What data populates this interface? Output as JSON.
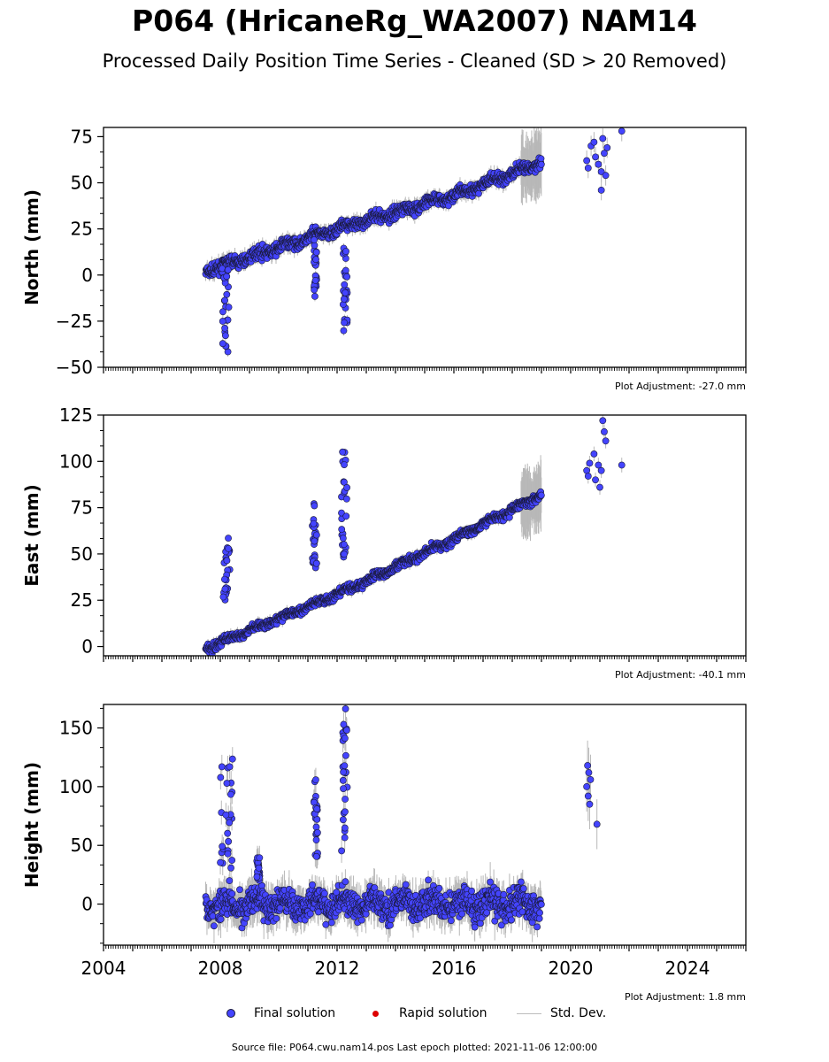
{
  "title": "P064 (HricaneRg_WA2007) NAM14",
  "subtitle": "Processed Daily Position Time Series - Cleaned (SD > 20 Removed)",
  "legend": {
    "final": "Final solution",
    "rapid": "Rapid solution",
    "std": "Std. Dev."
  },
  "source": "Source file: P064.cwu.nam14.pos  Last epoch plotted: 2021-11-06 12:00:00",
  "colors": {
    "final": "#4444ff",
    "final_edge": "#1a1a3a",
    "rapid": "#dd0000",
    "std": "#b8b8b8"
  },
  "chart_data": [
    {
      "type": "scatter",
      "ylabel": "North (mm)",
      "adjustment": "Plot Adjustment: -27.0 mm",
      "xlim": [
        2004,
        2026
      ],
      "ylim": [
        -50,
        80
      ],
      "yticks": [
        -50,
        -25,
        0,
        25,
        50,
        75
      ],
      "yticklabels": [
        "−50",
        "−25",
        "0",
        "25",
        "50",
        "75"
      ],
      "trend": [
        [
          2007.5,
          2
        ],
        [
          2012.0,
          25
        ],
        [
          2016.0,
          43
        ],
        [
          2019.0,
          61
        ]
      ],
      "events": [
        [
          2008.05,
          2008.3,
          -45,
          5
        ],
        [
          2011.2,
          2011.3,
          -14,
          20
        ],
        [
          2012.2,
          2012.35,
          -31,
          15
        ]
      ],
      "later": [
        [
          2020.55,
          62
        ],
        [
          2020.6,
          58
        ],
        [
          2020.7,
          70
        ],
        [
          2020.8,
          72
        ],
        [
          2020.85,
          64
        ],
        [
          2020.95,
          60
        ],
        [
          2021.05,
          46
        ],
        [
          2021.05,
          56
        ],
        [
          2021.1,
          74
        ],
        [
          2021.15,
          66
        ],
        [
          2021.2,
          54
        ],
        [
          2021.25,
          69
        ],
        [
          2021.75,
          78
        ]
      ],
      "noise": 2.2
    },
    {
      "type": "scatter",
      "ylabel": "East (mm)",
      "adjustment": "Plot Adjustment: -40.1 mm",
      "xlim": [
        2004,
        2026
      ],
      "ylim": [
        -5,
        125
      ],
      "yticks": [
        0,
        25,
        50,
        75,
        100,
        125
      ],
      "yticklabels": [
        "0",
        "25",
        "50",
        "75",
        "100",
        "125"
      ],
      "trend": [
        [
          2007.5,
          -1
        ],
        [
          2012.0,
          28
        ],
        [
          2016.0,
          58
        ],
        [
          2019.0,
          82
        ]
      ],
      "events": [
        [
          2008.1,
          2008.35,
          25,
          59
        ],
        [
          2011.15,
          2011.3,
          38,
          78
        ],
        [
          2012.15,
          2012.35,
          45,
          106
        ]
      ],
      "later": [
        [
          2020.55,
          95
        ],
        [
          2020.6,
          92
        ],
        [
          2020.65,
          99
        ],
        [
          2020.8,
          104
        ],
        [
          2020.85,
          90
        ],
        [
          2020.95,
          98
        ],
        [
          2021.0,
          86
        ],
        [
          2021.05,
          95
        ],
        [
          2021.1,
          122
        ],
        [
          2021.15,
          116
        ],
        [
          2021.2,
          111
        ],
        [
          2021.75,
          98
        ]
      ],
      "noise": 1.6
    },
    {
      "type": "scatter",
      "ylabel": "Height (mm)",
      "adjustment": "Plot Adjustment: 1.8 mm",
      "xlim": [
        2004,
        2026
      ],
      "ylim": [
        -35,
        170
      ],
      "yticks": [
        0,
        50,
        100,
        150
      ],
      "yticklabels": [
        "0",
        "50",
        "100",
        "150"
      ],
      "xticks": [
        2004,
        2008,
        2012,
        2016,
        2020,
        2024
      ],
      "xticklabels": [
        "2004",
        "2008",
        "2012",
        "2016",
        "2020",
        "2024"
      ],
      "trend": [
        [
          2007.5,
          0
        ],
        [
          2019.0,
          0
        ]
      ],
      "events": [
        [
          2008.0,
          2008.45,
          30,
          130
        ],
        [
          2009.25,
          2009.35,
          20,
          40
        ],
        [
          2011.2,
          2011.35,
          40,
          108
        ],
        [
          2012.15,
          2012.35,
          40,
          167
        ]
      ],
      "later": [
        [
          2020.55,
          100
        ],
        [
          2020.58,
          118
        ],
        [
          2020.6,
          92
        ],
        [
          2020.62,
          112
        ],
        [
          2020.65,
          85
        ],
        [
          2020.68,
          106
        ],
        [
          2020.9,
          68
        ]
      ],
      "noise": 8.5
    }
  ]
}
